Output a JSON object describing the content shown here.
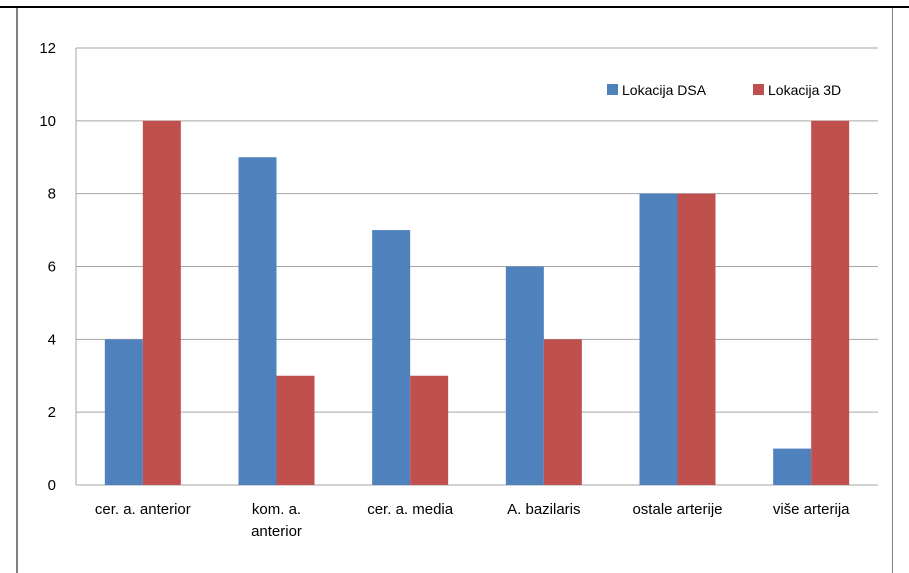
{
  "colors": {
    "series_dsa": "#4f81bd",
    "series_3d": "#c0504d",
    "grid": "#a6a6a6"
  },
  "chart_data": {
    "type": "bar",
    "title": "",
    "xlabel": "",
    "ylabel": "",
    "ylim": [
      0,
      12
    ],
    "yticks": [
      0,
      2,
      4,
      6,
      8,
      10,
      12
    ],
    "grid": true,
    "legend_position": "top-right",
    "categories": [
      [
        "cer. a. anterior"
      ],
      [
        "kom. a.",
        "anterior"
      ],
      [
        "cer. a. media"
      ],
      [
        "A. bazilaris"
      ],
      [
        "ostale arterije"
      ],
      [
        "više arterija"
      ]
    ],
    "series": [
      {
        "name": "Lokacija DSA",
        "color": "#4f81bd",
        "values": [
          4,
          9,
          7,
          6,
          8,
          1
        ]
      },
      {
        "name": "Lokacija 3D",
        "color": "#c0504d",
        "values": [
          10,
          3,
          3,
          4,
          8,
          10
        ]
      }
    ]
  }
}
